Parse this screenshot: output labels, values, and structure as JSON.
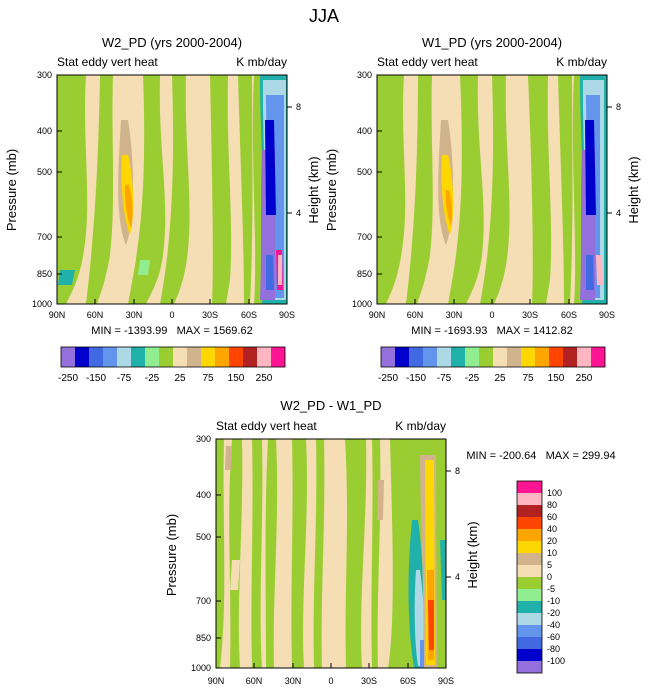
{
  "figure_title": "JJA",
  "colors": {
    "neg": [
      "#9370db",
      "#0000cd",
      "#4169e1",
      "#6495ed",
      "#add8e6",
      "#20b2aa",
      "#90ee90",
      "#9acd32"
    ],
    "pos": [
      "#f5deb3",
      "#d2b48c",
      "#ffd700",
      "#ffa500",
      "#ff4500",
      "#b22222",
      "#ffb6c1",
      "#ff1493"
    ],
    "diff_bar": [
      "#9370db",
      "#0000cd",
      "#4169e1",
      "#6495ed",
      "#add8e6",
      "#20b2aa",
      "#90ee90",
      "#9acd32",
      "#f5deb3",
      "#d2b48c",
      "#ffd700",
      "#ffa500",
      "#ff4500",
      "#b22222",
      "#ffb6c1",
      "#ff1493"
    ]
  },
  "chart_data": [
    {
      "type": "contour",
      "title": "W2_PD (yrs 2000-2004)",
      "left_label": "Stat eddy vert heat",
      "right_label": "K mb/day",
      "ylabel": "Pressure (mb)",
      "y2label": "Height (km)",
      "xticks": [
        "90N",
        "60N",
        "30N",
        "0",
        "30S",
        "60S",
        "90S"
      ],
      "yticks": [
        "300",
        "400",
        "500",
        "700",
        "850",
        "1000"
      ],
      "y2ticks": [
        "8",
        "4"
      ],
      "minmax": "MIN = -1393.99   MAX = 1569.62",
      "colorbar_labels": [
        "-250",
        "-150",
        "-75",
        "-25",
        "25",
        "75",
        "150",
        "250"
      ]
    },
    {
      "type": "contour",
      "title": "W1_PD (yrs 2000-2004)",
      "left_label": "Stat eddy vert heat",
      "right_label": "K mb/day",
      "ylabel": "Pressure (mb)",
      "y2label": "Height (km)",
      "xticks": [
        "90N",
        "60N",
        "30N",
        "0",
        "30S",
        "60S",
        "90S"
      ],
      "yticks": [
        "300",
        "400",
        "500",
        "700",
        "850",
        "1000"
      ],
      "y2ticks": [
        "8",
        "4"
      ],
      "minmax": "MIN = -1693.93   MAX = 1412.82",
      "colorbar_labels": [
        "-250",
        "-150",
        "-75",
        "-25",
        "25",
        "75",
        "150",
        "250"
      ]
    },
    {
      "type": "contour",
      "title": "W2_PD - W1_PD",
      "left_label": "Stat eddy vert heat",
      "right_label": "K mb/day",
      "ylabel": "Pressure (mb)",
      "y2label": "Height (km)",
      "xticks": [
        "90N",
        "60N",
        "30N",
        "0",
        "30S",
        "60S",
        "90S"
      ],
      "yticks": [
        "300",
        "400",
        "500",
        "700",
        "850",
        "1000"
      ],
      "y2ticks": [
        "8",
        "4"
      ],
      "minmax": "MIN = -200.64   MAX = 299.94",
      "colorbar_labels": [
        "100",
        "80",
        "60",
        "40",
        "20",
        "10",
        "5",
        "0",
        "-5",
        "-10",
        "-20",
        "-40",
        "-60",
        "-80",
        "-100"
      ]
    }
  ]
}
